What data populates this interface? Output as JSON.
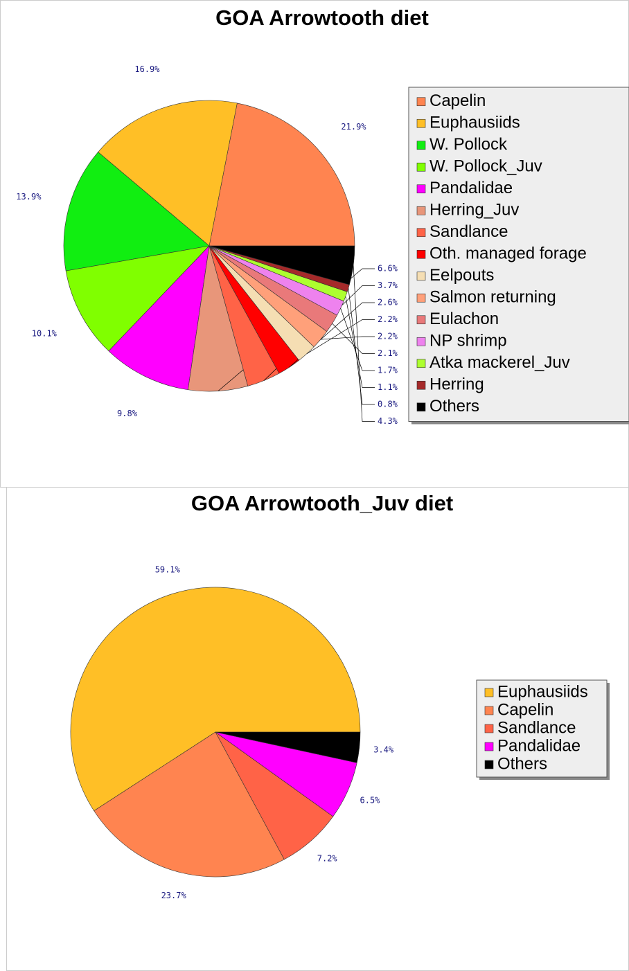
{
  "chart_data": [
    {
      "type": "pie",
      "title": "GOA Arrowtooth diet",
      "categories": [
        "Capelin",
        "Euphausiids",
        "W. Pollock",
        "W. Pollock_Juv",
        "Pandalidae",
        "Herring_Juv",
        "Sandlance",
        "Oth. managed forage",
        "Eelpouts",
        "Salmon returning",
        "Eulachon",
        "NP shrimp",
        "Atka mackerel_Juv",
        "Herring",
        "Others"
      ],
      "values": [
        21.9,
        16.9,
        13.9,
        10.1,
        9.8,
        6.6,
        3.7,
        2.6,
        2.2,
        2.2,
        2.1,
        1.7,
        1.1,
        0.8,
        4.3
      ],
      "value_labels": [
        "21.9%",
        "16.9%",
        "13.9%",
        "10.1%",
        "9.8%",
        "6.6%",
        "3.7%",
        "2.6%",
        "2.2%",
        "2.2%",
        "2.1%",
        "1.7%",
        "1.1%",
        "0.8%",
        "4.3%"
      ],
      "colors": [
        "#ff8450",
        "#ffbf26",
        "#11ee11",
        "#80ff00",
        "#ff00ff",
        "#e8967a",
        "#ff6347",
        "#ff0000",
        "#f5deb3",
        "#ffa07a",
        "#e9797a",
        "#ee82ee",
        "#adff2f",
        "#a52a2a",
        "#000000"
      ]
    },
    {
      "type": "pie",
      "title": "GOA Arrowtooth_Juv diet",
      "categories": [
        "Euphausiids",
        "Capelin",
        "Sandlance",
        "Pandalidae",
        "Others"
      ],
      "values": [
        59.1,
        23.7,
        7.2,
        6.5,
        3.4
      ],
      "value_labels": [
        "59.1%",
        "23.7%",
        "7.2%",
        "6.5%",
        "3.4%"
      ],
      "colors": [
        "#ffbf26",
        "#ff8450",
        "#ff6347",
        "#ff00ff",
        "#000000"
      ]
    }
  ]
}
